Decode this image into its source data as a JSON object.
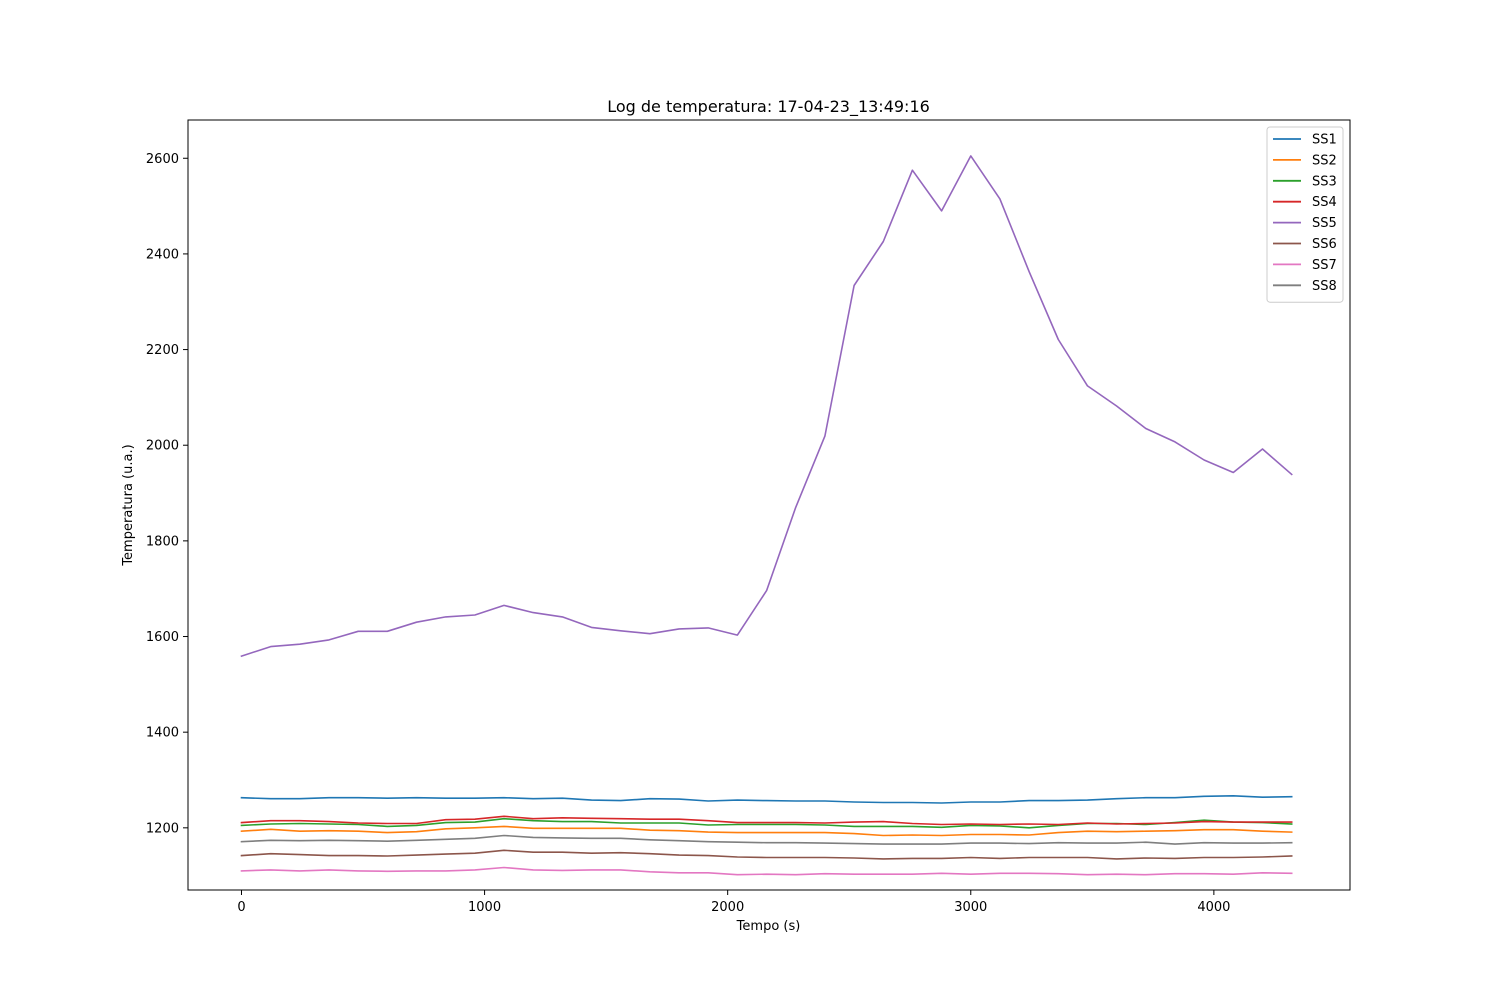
{
  "chart_data": {
    "type": "line",
    "title": "Log de temperatura: 17-04-23_13:49:16",
    "xlabel": "Tempo (s)",
    "ylabel": "Temperatura (u.a.)",
    "xlim": [
      -220,
      4560
    ],
    "ylim": [
      1070,
      2680
    ],
    "xticks": [
      0,
      1000,
      2000,
      3000,
      4000
    ],
    "yticks": [
      1200,
      1400,
      1600,
      1800,
      2000,
      2200,
      2400,
      2600
    ],
    "grid": false,
    "legend_position": "top-right",
    "x": [
      0,
      120,
      240,
      360,
      480,
      600,
      720,
      840,
      960,
      1080,
      1200,
      1320,
      1440,
      1560,
      1680,
      1800,
      1920,
      2040,
      2160,
      2280,
      2400,
      2520,
      2640,
      2760,
      2880,
      3000,
      3120,
      3240,
      3360,
      3480,
      3600,
      3720,
      3840,
      3960,
      4080,
      4200,
      4320
    ],
    "series": [
      {
        "name": "SS1",
        "color": "#1f77b4",
        "values": [
          1263,
          1261,
          1261,
          1263,
          1263,
          1262,
          1263,
          1262,
          1262,
          1263,
          1261,
          1262,
          1258,
          1257,
          1261,
          1260,
          1256,
          1258,
          1257,
          1256,
          1256,
          1254,
          1253,
          1253,
          1252,
          1254,
          1254,
          1257,
          1257,
          1258,
          1261,
          1263,
          1263,
          1266,
          1267,
          1264,
          1265
        ]
      },
      {
        "name": "SS2",
        "color": "#ff7f0e",
        "values": [
          1193,
          1197,
          1193,
          1194,
          1193,
          1190,
          1192,
          1198,
          1200,
          1203,
          1199,
          1199,
          1199,
          1199,
          1195,
          1194,
          1191,
          1190,
          1190,
          1190,
          1190,
          1188,
          1184,
          1185,
          1184,
          1186,
          1186,
          1185,
          1190,
          1193,
          1192,
          1193,
          1194,
          1196,
          1196,
          1193,
          1191
        ]
      },
      {
        "name": "SS3",
        "color": "#2ca02c",
        "values": [
          1205,
          1208,
          1209,
          1208,
          1207,
          1203,
          1205,
          1211,
          1212,
          1219,
          1215,
          1213,
          1213,
          1210,
          1210,
          1210,
          1206,
          1207,
          1207,
          1207,
          1206,
          1203,
          1203,
          1203,
          1201,
          1205,
          1204,
          1200,
          1205,
          1209,
          1209,
          1207,
          1211,
          1216,
          1212,
          1211,
          1208
        ]
      },
      {
        "name": "SS4",
        "color": "#d62728",
        "values": [
          1211,
          1215,
          1215,
          1213,
          1210,
          1209,
          1209,
          1217,
          1218,
          1224,
          1219,
          1221,
          1220,
          1219,
          1218,
          1218,
          1215,
          1211,
          1211,
          1211,
          1210,
          1212,
          1213,
          1209,
          1207,
          1208,
          1207,
          1208,
          1207,
          1210,
          1208,
          1209,
          1210,
          1213,
          1212,
          1212,
          1212
        ]
      },
      {
        "name": "SS5",
        "color": "#9467bd",
        "values": [
          1559,
          1579,
          1584,
          1593,
          1611,
          1611,
          1630,
          1641,
          1645,
          1665,
          1650,
          1641,
          1619,
          1612,
          1606,
          1616,
          1618,
          1603,
          1696,
          1870,
          2019,
          2334,
          2426,
          2575,
          2490,
          2605,
          2515,
          2363,
          2221,
          2124,
          2082,
          2035,
          2007,
          1969,
          1943,
          1992,
          1939
        ]
      },
      {
        "name": "SS6",
        "color": "#8c564b",
        "values": [
          1142,
          1146,
          1144,
          1142,
          1142,
          1141,
          1143,
          1145,
          1147,
          1153,
          1149,
          1149,
          1147,
          1148,
          1146,
          1143,
          1142,
          1139,
          1138,
          1138,
          1138,
          1137,
          1135,
          1136,
          1136,
          1138,
          1136,
          1138,
          1138,
          1138,
          1135,
          1137,
          1136,
          1138,
          1138,
          1139,
          1141
        ]
      },
      {
        "name": "SS7",
        "color": "#e377c2",
        "values": [
          1110,
          1112,
          1110,
          1112,
          1110,
          1109,
          1110,
          1110,
          1112,
          1117,
          1112,
          1111,
          1112,
          1112,
          1108,
          1106,
          1106,
          1102,
          1103,
          1102,
          1104,
          1103,
          1103,
          1103,
          1105,
          1103,
          1105,
          1105,
          1104,
          1102,
          1103,
          1102,
          1104,
          1104,
          1103,
          1106,
          1105
        ]
      },
      {
        "name": "SS8",
        "color": "#7f7f7f",
        "values": [
          1171,
          1174,
          1173,
          1174,
          1173,
          1172,
          1174,
          1176,
          1178,
          1184,
          1180,
          1179,
          1178,
          1178,
          1175,
          1173,
          1171,
          1170,
          1169,
          1169,
          1168,
          1167,
          1166,
          1166,
          1166,
          1168,
          1168,
          1167,
          1169,
          1168,
          1168,
          1170,
          1166,
          1169,
          1168,
          1168,
          1169
        ]
      }
    ]
  }
}
